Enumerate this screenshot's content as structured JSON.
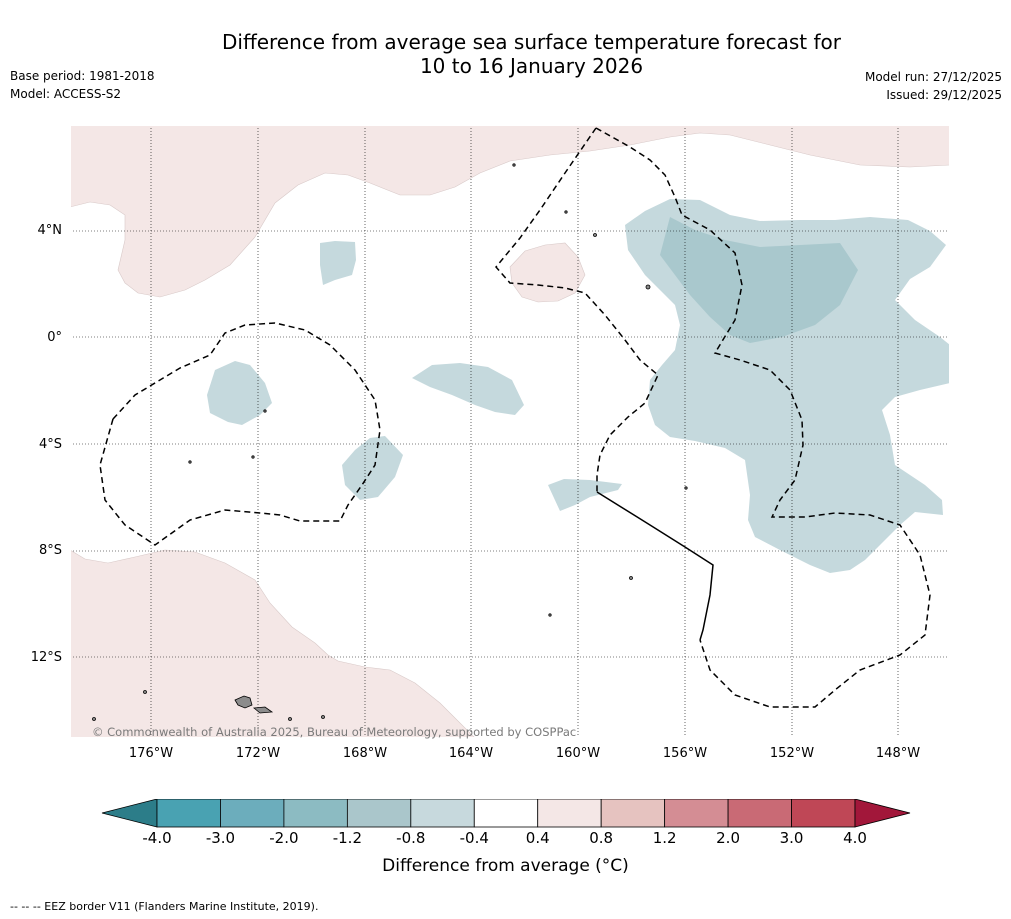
{
  "header": {
    "title_line1": "Difference from average sea surface temperature forecast for",
    "title_line2": "10 to 16 January 2026",
    "base_period": "Base period: 1981-2018",
    "model": "Model: ACCESS-S2",
    "model_run": "Model run: 27/12/2025",
    "issued": "Issued: 29/12/2025"
  },
  "map": {
    "lat_ticks": [
      "4°N",
      "0°",
      "4°S",
      "8°S",
      "12°S"
    ],
    "lon_ticks": [
      "176°W",
      "172°W",
      "168°W",
      "164°W",
      "160°W",
      "156°W",
      "152°W",
      "148°W"
    ],
    "copyright": "© Commonwealth of Australia 2025, Bureau of Meteorology, supported by COSPPac",
    "colors": {
      "cool_light": "#c5d9dd",
      "cool_mid": "#a9c8cd",
      "warm_light": "#f4e7e6",
      "eez_line": "#000000",
      "land": "#8c8c8c"
    }
  },
  "colorbar": {
    "tick_labels": [
      "-4.0",
      "-3.0",
      "-2.0",
      "-1.2",
      "-0.8",
      "-0.4",
      "0.4",
      "0.8",
      "1.2",
      "2.0",
      "3.0",
      "4.0"
    ],
    "colors": [
      "#2c7d89",
      "#49a2b2",
      "#6cadbc",
      "#8cbbc2",
      "#aac6cb",
      "#c7d9dd",
      "#ffffff",
      "#f4e7e6",
      "#e6c3c0",
      "#d48d94",
      "#c96a75",
      "#bf4756",
      "#a2173a"
    ],
    "label": "Difference from average (°C)"
  },
  "footer": {
    "legend_note": "--  --  -- EEZ border V11 (Flanders Marine Institute, 2019)."
  }
}
